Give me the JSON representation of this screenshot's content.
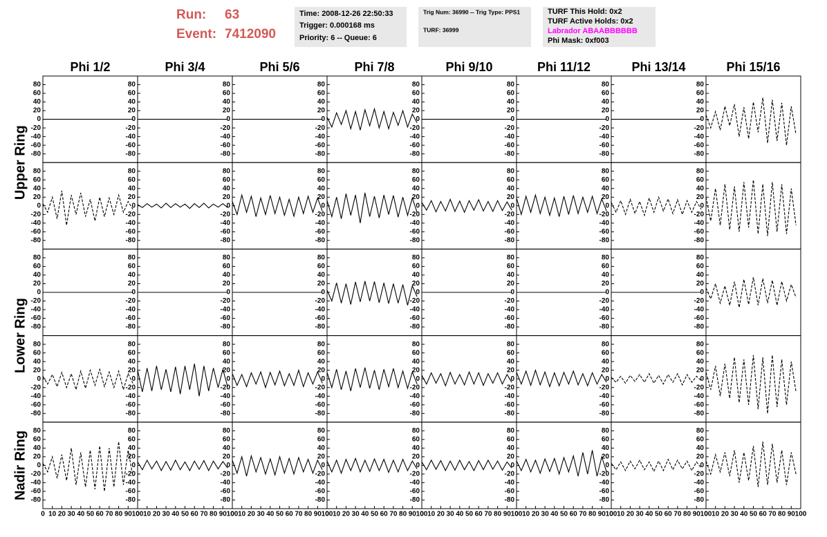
{
  "header": {
    "run_label": "Run:",
    "run": "63",
    "event_label": "Event:",
    "event": "7412090",
    "info_1": [
      "Time: 2008-12-26 22:50:33",
      "Trigger: 0.000168 ms",
      "Priority: 6 -- Queue: 6"
    ],
    "info_2": [
      "Trig Num: 36990 -- Trig Type: PPS1",
      "TURF: 36999"
    ],
    "info_3": [
      "TURF This Hold: 0x2",
      "TURF Active Holds: 0x2",
      "Labrador ABAABBBBBB",
      "Phi Mask: 0xf003"
    ]
  },
  "chart_data": {
    "type": "line",
    "color": "#000000",
    "columns": [
      "Phi 1/2",
      "Phi 3/4",
      "Phi 5/6",
      "Phi 7/8",
      "Phi 9/10",
      "Phi 11/12",
      "Phi 13/14",
      "Phi 15/16"
    ],
    "ring_labels": [
      "Upper Ring",
      "Lower Ring",
      "Nadir Ring"
    ],
    "xlim": [
      0,
      100
    ],
    "ylim": [
      -100,
      100
    ],
    "xticks": [
      0,
      10,
      20,
      30,
      40,
      50,
      60,
      70,
      80,
      90,
      100
    ],
    "yticks": [
      -80,
      -60,
      -40,
      -20,
      0,
      20,
      40,
      60,
      80
    ],
    "x": [
      0,
      5,
      10,
      15,
      20,
      25,
      30,
      35,
      40,
      45,
      50,
      55,
      60,
      65,
      70,
      75,
      80,
      85,
      90,
      95
    ],
    "panels": [
      [
        {
          "style": "solid",
          "values": [
            0,
            0,
            0,
            0,
            0,
            0,
            0,
            0,
            0,
            0,
            0,
            0,
            0,
            0,
            0,
            0,
            0,
            0,
            0,
            0
          ]
        },
        {
          "style": "solid",
          "values": [
            0,
            0,
            0,
            0,
            0,
            0,
            0,
            0,
            0,
            0,
            0,
            0,
            0,
            0,
            0,
            0,
            0,
            0,
            0,
            0
          ]
        },
        {
          "style": "solid",
          "values": [
            0,
            0,
            0,
            0,
            0,
            0,
            0,
            0,
            0,
            0,
            0,
            0,
            0,
            0,
            0,
            0,
            0,
            0,
            0,
            0
          ]
        },
        {
          "style": "solid",
          "values": [
            5,
            -18,
            15,
            -12,
            20,
            -22,
            18,
            -25,
            22,
            -15,
            24,
            -20,
            18,
            -22,
            16,
            -14,
            20,
            -18,
            12,
            -8
          ]
        },
        {
          "style": "solid",
          "values": [
            0,
            0,
            0,
            0,
            0,
            0,
            0,
            0,
            0,
            0,
            0,
            0,
            0,
            0,
            0,
            0,
            0,
            0,
            0,
            0
          ]
        },
        {
          "style": "solid",
          "values": [
            0,
            0,
            0,
            0,
            0,
            0,
            0,
            0,
            0,
            0,
            0,
            0,
            0,
            0,
            0,
            0,
            0,
            0,
            0,
            0
          ]
        },
        {
          "style": "solid",
          "values": [
            0,
            0,
            0,
            0,
            0,
            0,
            0,
            0,
            0,
            0,
            0,
            0,
            0,
            0,
            0,
            0,
            0,
            0,
            0,
            0
          ]
        },
        {
          "style": "dashed",
          "values": [
            10,
            -20,
            18,
            -25,
            30,
            -15,
            35,
            -40,
            28,
            -45,
            40,
            -30,
            50,
            -55,
            45,
            -50,
            38,
            -60,
            30,
            -35
          ]
        }
      ],
      [
        {
          "style": "dashed",
          "values": [
            5,
            -15,
            20,
            -30,
            35,
            -45,
            25,
            -20,
            30,
            -25,
            15,
            -35,
            20,
            -25,
            18,
            -20,
            25,
            -15,
            10,
            -8
          ]
        },
        {
          "style": "solid",
          "values": [
            3,
            -4,
            5,
            -3,
            4,
            -5,
            6,
            -4,
            5,
            -3,
            4,
            -6,
            5,
            -4,
            6,
            -5,
            4,
            -3,
            5,
            -4
          ]
        },
        {
          "style": "solid",
          "values": [
            10,
            -20,
            25,
            -15,
            22,
            -25,
            18,
            -20,
            24,
            -18,
            20,
            -22,
            15,
            -24,
            20,
            -18,
            22,
            -15,
            18,
            -12
          ]
        },
        {
          "style": "solid",
          "values": [
            12,
            -25,
            20,
            -30,
            28,
            -22,
            25,
            -40,
            30,
            -25,
            22,
            -28,
            25,
            -20,
            24,
            -26,
            20,
            -22,
            18,
            -15
          ]
        },
        {
          "style": "solid",
          "values": [
            8,
            -10,
            12,
            -14,
            10,
            -12,
            15,
            -13,
            11,
            -15,
            12,
            -10,
            14,
            -12,
            10,
            -13,
            12,
            -11,
            9,
            -10
          ]
        },
        {
          "style": "solid",
          "values": [
            18,
            -20,
            22,
            -15,
            25,
            -18,
            20,
            -22,
            18,
            -25,
            22,
            -20,
            24,
            -18,
            20,
            -15,
            22,
            -18,
            16,
            -12
          ]
        },
        {
          "style": "dashed",
          "values": [
            8,
            -15,
            12,
            -20,
            15,
            -18,
            10,
            -22,
            18,
            -15,
            20,
            -12,
            16,
            -18,
            14,
            -20,
            12,
            -15,
            10,
            -8
          ]
        },
        {
          "style": "dashed",
          "values": [
            20,
            -35,
            40,
            -45,
            50,
            -55,
            45,
            -60,
            55,
            -50,
            60,
            -65,
            50,
            -70,
            55,
            -60,
            50,
            -65,
            40,
            -45
          ]
        }
      ],
      [
        {
          "style": "solid",
          "values": [
            0,
            0,
            0,
            0,
            0,
            0,
            0,
            0,
            0,
            0,
            0,
            0,
            0,
            0,
            0,
            0,
            0,
            0,
            0,
            0
          ]
        },
        {
          "style": "solid",
          "values": [
            0,
            0,
            0,
            0,
            0,
            0,
            0,
            0,
            0,
            0,
            0,
            0,
            0,
            0,
            0,
            0,
            0,
            0,
            0,
            0
          ]
        },
        {
          "style": "solid",
          "values": [
            0,
            0,
            0,
            0,
            0,
            0,
            0,
            0,
            0,
            0,
            0,
            0,
            0,
            0,
            0,
            0,
            0,
            0,
            0,
            0
          ]
        },
        {
          "style": "solid",
          "values": [
            5,
            -20,
            22,
            -25,
            20,
            -28,
            24,
            -22,
            26,
            -20,
            25,
            -24,
            22,
            -26,
            20,
            -25,
            18,
            -30,
            15,
            -10
          ]
        },
        {
          "style": "solid",
          "values": [
            0,
            0,
            0,
            0,
            0,
            0,
            0,
            0,
            0,
            0,
            0,
            0,
            0,
            0,
            0,
            0,
            0,
            0,
            0,
            0
          ]
        },
        {
          "style": "solid",
          "values": [
            0,
            0,
            0,
            0,
            0,
            0,
            0,
            0,
            0,
            0,
            0,
            0,
            0,
            0,
            0,
            0,
            0,
            0,
            0,
            0
          ]
        },
        {
          "style": "solid",
          "values": [
            0,
            0,
            0,
            0,
            0,
            0,
            0,
            0,
            0,
            0,
            0,
            0,
            0,
            0,
            0,
            0,
            0,
            0,
            0,
            0
          ]
        },
        {
          "style": "dashed",
          "values": [
            10,
            -15,
            20,
            -25,
            15,
            -30,
            25,
            -35,
            30,
            -28,
            35,
            -30,
            32,
            -25,
            28,
            -30,
            25,
            -20,
            18,
            -12
          ]
        }
      ],
      [
        {
          "style": "dashed",
          "values": [
            6,
            -12,
            10,
            -18,
            15,
            -20,
            12,
            -25,
            18,
            -22,
            20,
            -15,
            22,
            -18,
            16,
            -20,
            18,
            -25,
            12,
            -10
          ]
        },
        {
          "style": "solid",
          "values": [
            20,
            -30,
            25,
            -28,
            30,
            -25,
            22,
            -30,
            28,
            -35,
            30,
            -25,
            35,
            -40,
            30,
            -28,
            25,
            -20,
            22,
            -18
          ]
        },
        {
          "style": "solid",
          "values": [
            12,
            -15,
            10,
            -18,
            14,
            -12,
            16,
            -20,
            15,
            -14,
            18,
            -16,
            12,
            -15,
            20,
            -18,
            14,
            -12,
            16,
            -10
          ]
        },
        {
          "style": "solid",
          "values": [
            15,
            -20,
            22,
            -25,
            18,
            -28,
            24,
            -20,
            26,
            -22,
            20,
            -25,
            22,
            -18,
            24,
            -20,
            18,
            -22,
            16,
            -12
          ]
        },
        {
          "style": "solid",
          "values": [
            8,
            -12,
            14,
            -10,
            12,
            -16,
            15,
            -12,
            10,
            -14,
            16,
            -12,
            14,
            -15,
            12,
            -10,
            14,
            -12,
            10,
            -8
          ]
        },
        {
          "style": "solid",
          "values": [
            15,
            -12,
            18,
            -15,
            20,
            -14,
            16,
            -18,
            14,
            -16,
            15,
            -12,
            18,
            -14,
            12,
            -16,
            14,
            -12,
            10,
            -8
          ]
        },
        {
          "style": "dashed",
          "values": [
            4,
            -8,
            6,
            -10,
            8,
            -6,
            10,
            -8,
            12,
            -10,
            8,
            -12,
            10,
            -8,
            12,
            -14,
            10,
            -8,
            6,
            -4
          ]
        },
        {
          "style": "dashed",
          "values": [
            15,
            -25,
            30,
            -40,
            35,
            -45,
            50,
            -55,
            45,
            -60,
            55,
            -70,
            50,
            -80,
            55,
            -65,
            45,
            -60,
            40,
            -30
          ]
        }
      ],
      [
        {
          "style": "dashed",
          "values": [
            5,
            -15,
            20,
            -30,
            25,
            -35,
            40,
            -45,
            30,
            -50,
            35,
            -55,
            45,
            -60,
            40,
            -50,
            55,
            -45,
            35,
            -25
          ]
        },
        {
          "style": "solid",
          "values": [
            8,
            -10,
            12,
            -8,
            10,
            -12,
            9,
            -11,
            12,
            -10,
            8,
            -12,
            10,
            -9,
            11,
            -12,
            10,
            -8,
            9,
            -6
          ]
        },
        {
          "style": "solid",
          "values": [
            12,
            -18,
            20,
            -25,
            22,
            -15,
            18,
            -20,
            15,
            -22,
            20,
            -18,
            16,
            -20,
            18,
            -15,
            14,
            -18,
            12,
            -10
          ]
        },
        {
          "style": "solid",
          "values": [
            10,
            -15,
            12,
            -18,
            14,
            -12,
            16,
            -15,
            12,
            -14,
            15,
            -12,
            14,
            -16,
            12,
            -15,
            14,
            -12,
            10,
            -8
          ]
        },
        {
          "style": "solid",
          "values": [
            8,
            -10,
            12,
            -9,
            11,
            -12,
            10,
            -11,
            12,
            -10,
            9,
            -12,
            11,
            -10,
            12,
            -9,
            10,
            -11,
            8,
            -6
          ]
        },
        {
          "style": "solid",
          "values": [
            10,
            -12,
            14,
            -15,
            12,
            -18,
            15,
            -14,
            16,
            -20,
            18,
            -15,
            22,
            -25,
            30,
            -20,
            35,
            -25,
            20,
            -15
          ]
        },
        {
          "style": "dashed",
          "values": [
            5,
            -10,
            8,
            -12,
            10,
            -8,
            12,
            -10,
            8,
            -14,
            10,
            -12,
            14,
            -10,
            12,
            -8,
            10,
            -12,
            8,
            -6
          ]
        },
        {
          "style": "dashed",
          "values": [
            10,
            -20,
            25,
            -15,
            30,
            -25,
            35,
            -40,
            30,
            -35,
            45,
            -50,
            55,
            -45,
            50,
            -40,
            35,
            -45,
            30,
            -20
          ]
        }
      ]
    ]
  }
}
